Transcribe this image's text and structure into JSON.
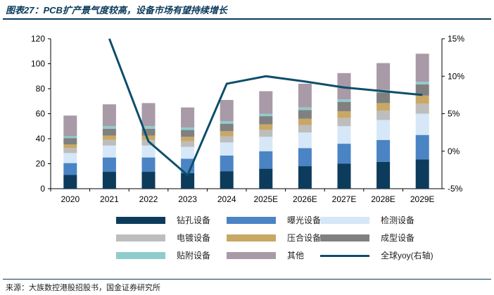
{
  "title": "图表27：PCB扩产景气度较高，设备市场有望持续增长",
  "source": "来源：大族数控港股招股书，国金证券研究所",
  "chart_data": {
    "type": "bar",
    "stacked": true,
    "categories": [
      "2020",
      "2021",
      "2022",
      "2023",
      "2024",
      "2025E",
      "2026E",
      "2027E",
      "2028E",
      "2029E"
    ],
    "ylim": [
      0,
      120
    ],
    "yticks": [
      0,
      20,
      40,
      60,
      80,
      100,
      120
    ],
    "y2lim": [
      -5,
      15
    ],
    "y2ticks": [
      "-5%",
      "0%",
      "5%",
      "10%",
      "15%"
    ],
    "y2tick_values": [
      -5,
      0,
      5,
      10,
      15
    ],
    "series": [
      {
        "name": "钻孔设备",
        "color": "#0d3b5c",
        "values": [
          11,
          13.5,
          13.5,
          12.5,
          14,
          16,
          18,
          20,
          21.5,
          23.5
        ]
      },
      {
        "name": "曝光设备",
        "color": "#4a84c4",
        "values": [
          9.5,
          11.5,
          11.5,
          11.5,
          12.5,
          14,
          14.5,
          16,
          17.5,
          19.5
        ]
      },
      {
        "name": "检测设备",
        "color": "#d6e8f7",
        "values": [
          8,
          9.5,
          9.5,
          9.5,
          10.5,
          11.5,
          12.5,
          14,
          16,
          17
        ]
      },
      {
        "name": "电镀设备",
        "color": "#bdbdbd",
        "values": [
          4,
          4.5,
          4.5,
          4.5,
          5,
          5.5,
          6,
          6.5,
          7.5,
          8
        ]
      },
      {
        "name": "压合设备",
        "color": "#c9a866",
        "values": [
          3,
          3.5,
          3.5,
          3.5,
          4,
          4.5,
          5,
          5.5,
          6,
          6.5
        ]
      },
      {
        "name": "成型设备",
        "color": "#808080",
        "values": [
          5,
          5.5,
          5.5,
          5.5,
          6,
          6.5,
          7,
          7.5,
          8.5,
          9
        ]
      },
      {
        "name": "贴附设备",
        "color": "#8fcccc",
        "values": [
          1.5,
          2,
          2,
          2,
          2,
          2,
          2,
          2,
          2,
          2
        ]
      },
      {
        "name": "其他",
        "color": "#a89aa6",
        "values": [
          16.5,
          17.5,
          18.5,
          16,
          17,
          18,
          19,
          21,
          21.5,
          22.5
        ]
      }
    ],
    "line": {
      "name": "全球yoy(右轴)",
      "color": "#0d4f6b",
      "values": [
        null,
        15,
        1.3,
        -3.2,
        9,
        10,
        9.3,
        8.5,
        8,
        7.5
      ]
    }
  }
}
